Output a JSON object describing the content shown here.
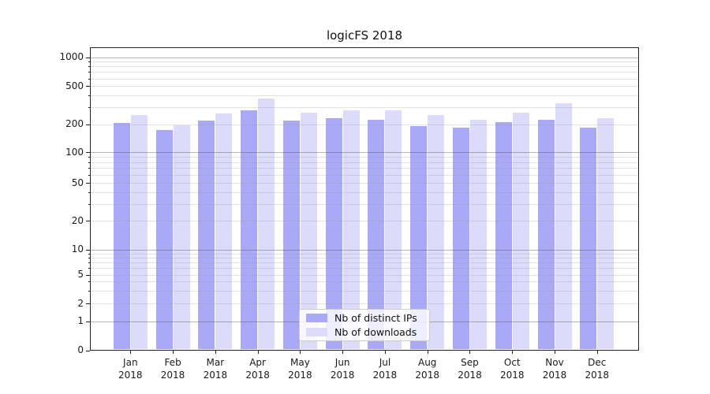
{
  "chart_data": {
    "type": "bar",
    "title": "logicFS 2018",
    "categories": [
      {
        "month": "Jan",
        "year": "2018"
      },
      {
        "month": "Feb",
        "year": "2018"
      },
      {
        "month": "Mar",
        "year": "2018"
      },
      {
        "month": "Apr",
        "year": "2018"
      },
      {
        "month": "May",
        "year": "2018"
      },
      {
        "month": "Jun",
        "year": "2018"
      },
      {
        "month": "Jul",
        "year": "2018"
      },
      {
        "month": "Aug",
        "year": "2018"
      },
      {
        "month": "Sep",
        "year": "2018"
      },
      {
        "month": "Oct",
        "year": "2018"
      },
      {
        "month": "Nov",
        "year": "2018"
      },
      {
        "month": "Dec",
        "year": "2018"
      }
    ],
    "series": [
      {
        "name": "Nb of distinct IPs",
        "color": "#a9a9f7",
        "values": [
          205,
          175,
          220,
          280,
          220,
          230,
          225,
          190,
          185,
          210,
          225,
          185
        ]
      },
      {
        "name": "Nb of downloads",
        "color": "#dcdcfa",
        "values": [
          250,
          195,
          260,
          370,
          265,
          280,
          280,
          250,
          225,
          265,
          330,
          230
        ]
      }
    ],
    "y_axis": {
      "scale": "log (with 0 shown at baseline)",
      "ticks": [
        {
          "value": 1000,
          "label": "1000"
        },
        {
          "value": 500,
          "label": "500"
        },
        {
          "value": 200,
          "label": "200"
        },
        {
          "value": 100,
          "label": "100"
        },
        {
          "value": 50,
          "label": "50"
        },
        {
          "value": 20,
          "label": "20"
        },
        {
          "value": 10,
          "label": "10"
        },
        {
          "value": 5,
          "label": "5"
        },
        {
          "value": 2,
          "label": "2"
        },
        {
          "value": 1,
          "label": "1"
        },
        {
          "value": 0,
          "label": "0"
        }
      ],
      "minor_gridlines": [
        2,
        3,
        4,
        5,
        6,
        7,
        8,
        9,
        20,
        30,
        40,
        50,
        60,
        70,
        80,
        90,
        200,
        300,
        400,
        500,
        600,
        700,
        800,
        900
      ],
      "major_gridlines": [
        1,
        10,
        100,
        1000
      ]
    },
    "legend_position": "bottom-center inside plot",
    "grid": "horizontal, log minors light / decade majors darker",
    "colors": {
      "axis": "#222222",
      "grid_minor": "#e2e2e2",
      "grid_major": "#b0b0b0"
    }
  }
}
